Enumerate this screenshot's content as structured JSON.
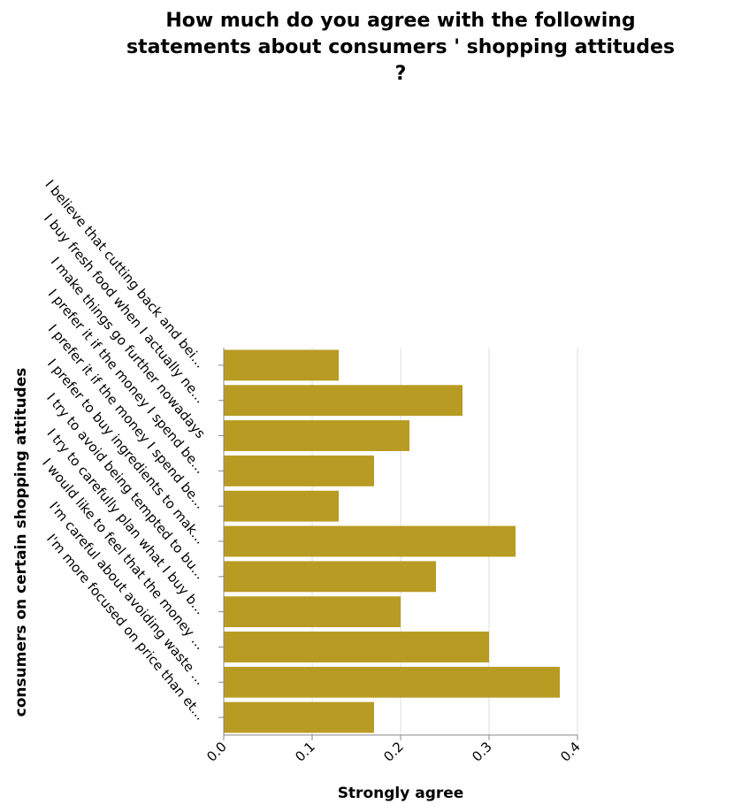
{
  "chart_data": {
    "type": "bar",
    "orientation": "horizontal",
    "title_lines": [
      "How much do you agree with the following",
      "statements about consumers ' shopping attitudes",
      "?"
    ],
    "xlabel": "Strongly agree",
    "ylabel": "consumers on certain shopping attitudes",
    "xlim": [
      0,
      0.4
    ],
    "xticks": [
      "0.0",
      "0.1",
      "0.2",
      "0.3",
      "0.4"
    ],
    "grid": true,
    "bar_color": "#b89b22",
    "categories": [
      "I believe that cutting back and bei...",
      "I buy fresh food when I actually ne...",
      "I make things go further nowadays",
      "I prefer it if the money I spend be...",
      "I prefer it if the money I spend be...",
      "I prefer to buy ingredients to mak...",
      "I try to avoid being tempted to bu...",
      "I try to carefully plan what I buy b...",
      "I would like to feel that the money ...",
      "I'm careful about avoiding waste ...",
      "I'm more focused on price than et..."
    ],
    "values": [
      0.13,
      0.27,
      0.21,
      0.17,
      0.13,
      0.33,
      0.24,
      0.2,
      0.3,
      0.38,
      0.17
    ]
  }
}
